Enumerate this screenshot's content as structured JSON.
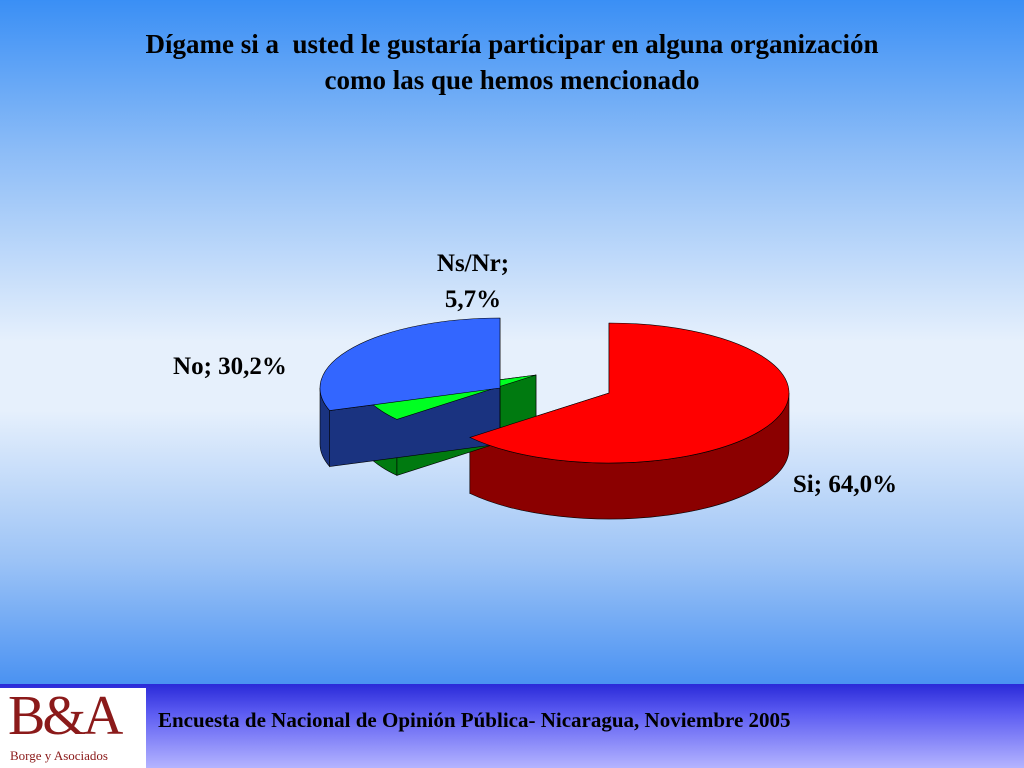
{
  "slide": {
    "title_line1": "Dígame si a  usted le gustaría participar en alguna organización",
    "title_line2": "como las que hemos mencionado",
    "footer_text": "Encuesta de Nacional de Opinión Pública- Nicaragua, Noviembre 2005",
    "logo_mark": "B&A",
    "logo_sub": "Borge y Asociados"
  },
  "chart_data": {
    "type": "pie",
    "title": "",
    "slices": [
      {
        "name": "Si",
        "value": 64.0,
        "label_line1": "Si; 64,0%",
        "label_line2": "",
        "color": "#ff0000",
        "side_color": "#8b0000"
      },
      {
        "name": "Ns/Nr",
        "value": 5.7,
        "label_line1": "Ns/Nr;",
        "label_line2": "5,7%",
        "color": "#00ff22",
        "side_color": "#007a10"
      },
      {
        "name": "No",
        "value": 30.2,
        "label_line1": "No; 30,2%",
        "label_line2": "",
        "color": "#3366ff",
        "side_color": "#1a3380"
      }
    ]
  }
}
